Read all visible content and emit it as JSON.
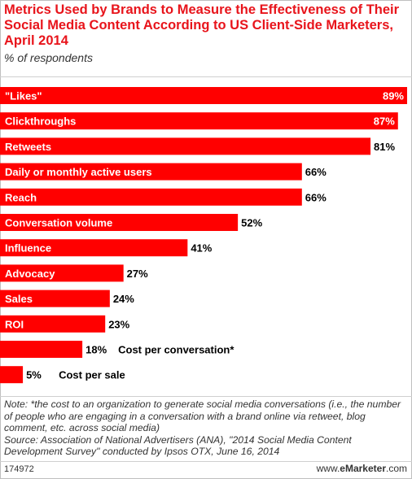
{
  "header": {
    "title": "Metrics Used by Brands to Measure the Effectiveness of Their Social Media Content According to US Client-Side Marketers, April 2014",
    "subtitle": "% of respondents"
  },
  "footer": {
    "note": "Note: *the cost to an organization to generate social media conversations (i.e., the number of people who are engaging in a conversation with a brand online via retweet, blog comment, etc. across social media)",
    "source": "Source: Association of National Advertisers (ANA), \"2014 Social Media Content Development Survey\" conducted by Ipsos OTX, June 16, 2014",
    "chart_id": "174972",
    "brand_prefix": "www.",
    "brand_name": "eMarketer",
    "brand_suffix": ".com"
  },
  "colors": {
    "bar": "#ff0000",
    "title": "#e8141b",
    "label_inside": "#ffffff",
    "label_outside": "#000000"
  },
  "chart_data": {
    "type": "bar",
    "orientation": "horizontal",
    "title": "Metrics Used by Brands to Measure the Effectiveness of Their Social Media Content According to US Client-Side Marketers, April 2014",
    "subtitle": "% of respondents",
    "categories": [
      "\"Likes\"",
      "Clickthroughs",
      "Retweets",
      "Daily or monthly active users",
      "Reach",
      "Conversation volume",
      "Influence",
      "Advocacy",
      "Sales",
      "ROI",
      "Cost per conversation*",
      "Cost per sale"
    ],
    "values": [
      89,
      87,
      81,
      66,
      66,
      52,
      41,
      27,
      24,
      23,
      18,
      5
    ],
    "value_labels": [
      "89%",
      "87%",
      "81%",
      "66%",
      "66%",
      "52%",
      "41%",
      "27%",
      "24%",
      "23%",
      "18%",
      "5%"
    ],
    "xlim": [
      0,
      100
    ],
    "grid": false,
    "legend": "none"
  }
}
